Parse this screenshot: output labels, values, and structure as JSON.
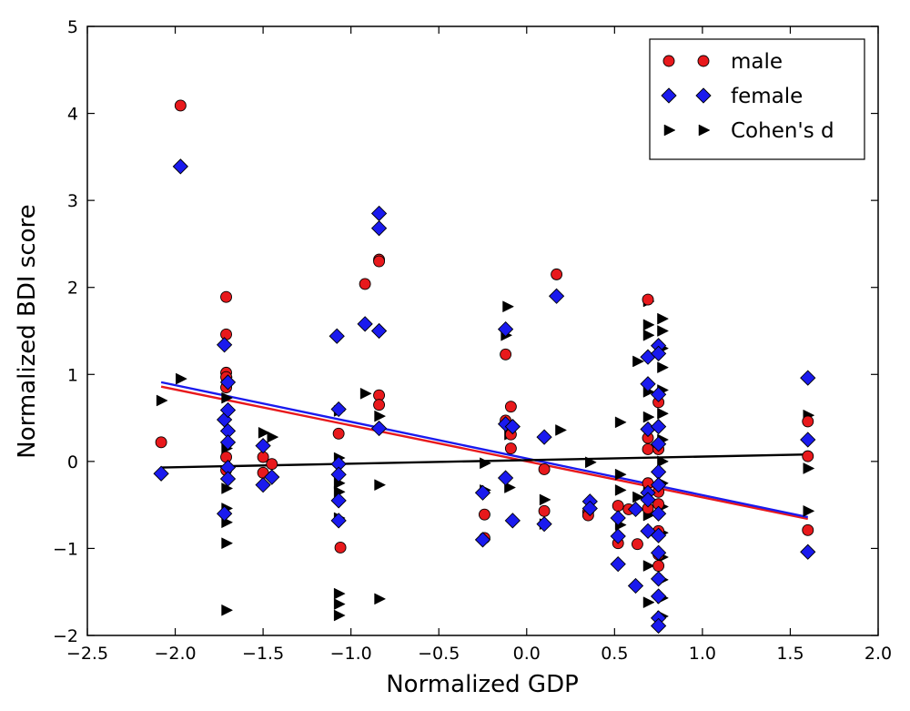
{
  "chart_data": {
    "type": "scatter",
    "xlabel": "Normalized GDP",
    "ylabel": "Normalized BDI score",
    "xlim": [
      -2.5,
      2.0
    ],
    "ylim": [
      -2,
      5
    ],
    "xticks": [
      -2.5,
      -2.0,
      -1.5,
      -1.0,
      -0.5,
      0.0,
      0.5,
      1.0,
      1.5,
      2.0
    ],
    "xtick_labels": [
      "−2.5",
      "−2.0",
      "−1.5",
      "−1.0",
      "−0.5",
      "0.0",
      "0.5",
      "1.0",
      "1.5",
      "2.0"
    ],
    "yticks": [
      -2,
      -1,
      0,
      1,
      2,
      3,
      4,
      5
    ],
    "ytick_labels": [
      "−2",
      "−1",
      "0",
      "1",
      "2",
      "3",
      "4",
      "5"
    ],
    "grid": false,
    "legend_position": "top-right",
    "series": [
      {
        "name": "male",
        "marker": "circle",
        "color": "#e8191c",
        "points": [
          [
            -2.08,
            0.22
          ],
          [
            -1.97,
            4.09
          ],
          [
            -1.71,
            1.89
          ],
          [
            -1.71,
            1.46
          ],
          [
            -1.71,
            1.02
          ],
          [
            -1.71,
            0.97
          ],
          [
            -1.71,
            0.85
          ],
          [
            -1.71,
            0.05
          ],
          [
            -1.71,
            -0.1
          ],
          [
            -1.5,
            0.05
          ],
          [
            -1.5,
            -0.13
          ],
          [
            -1.45,
            -0.03
          ],
          [
            -1.07,
            0.32
          ],
          [
            -1.06,
            -0.99
          ],
          [
            -0.92,
            2.04
          ],
          [
            -0.84,
            2.32
          ],
          [
            -0.84,
            2.3
          ],
          [
            -0.84,
            0.76
          ],
          [
            -0.84,
            0.65
          ],
          [
            -0.24,
            -0.61
          ],
          [
            -0.24,
            -0.88
          ],
          [
            -0.12,
            1.23
          ],
          [
            -0.12,
            0.47
          ],
          [
            -0.09,
            0.63
          ],
          [
            -0.09,
            0.31
          ],
          [
            -0.09,
            0.15
          ],
          [
            0.1,
            -0.09
          ],
          [
            0.1,
            -0.57
          ],
          [
            0.17,
            2.15
          ],
          [
            0.35,
            -0.58
          ],
          [
            0.35,
            -0.62
          ],
          [
            0.52,
            -0.51
          ],
          [
            0.52,
            -0.94
          ],
          [
            0.58,
            -0.55
          ],
          [
            0.63,
            -0.95
          ],
          [
            0.69,
            1.86
          ],
          [
            0.69,
            0.27
          ],
          [
            0.69,
            0.14
          ],
          [
            0.69,
            -0.25
          ],
          [
            0.69,
            -0.54
          ],
          [
            0.75,
            0.68
          ],
          [
            0.75,
            0.14
          ],
          [
            0.75,
            -0.35
          ],
          [
            0.75,
            -0.49
          ],
          [
            0.75,
            -0.8
          ],
          [
            0.75,
            -1.07
          ],
          [
            0.75,
            -1.2
          ],
          [
            1.6,
            0.46
          ],
          [
            1.6,
            0.06
          ],
          [
            1.6,
            -0.79
          ]
        ]
      },
      {
        "name": "female",
        "marker": "diamond",
        "color": "#1a1aee",
        "points": [
          [
            -2.08,
            -0.14
          ],
          [
            -1.97,
            3.39
          ],
          [
            -1.72,
            1.34
          ],
          [
            -1.72,
            0.48
          ],
          [
            -1.72,
            -0.6
          ],
          [
            -1.7,
            0.91
          ],
          [
            -1.7,
            0.59
          ],
          [
            -1.7,
            0.35
          ],
          [
            -1.7,
            0.22
          ],
          [
            -1.7,
            -0.07
          ],
          [
            -1.7,
            -0.2
          ],
          [
            -1.5,
            0.18
          ],
          [
            -1.5,
            -0.27
          ],
          [
            -1.45,
            -0.18
          ],
          [
            -1.08,
            1.44
          ],
          [
            -1.07,
            0.6
          ],
          [
            -1.07,
            -0.03
          ],
          [
            -1.07,
            -0.15
          ],
          [
            -1.07,
            -0.45
          ],
          [
            -1.07,
            -0.68
          ],
          [
            -0.92,
            1.58
          ],
          [
            -0.84,
            2.85
          ],
          [
            -0.84,
            2.68
          ],
          [
            -0.84,
            1.5
          ],
          [
            -0.84,
            0.38
          ],
          [
            -0.25,
            -0.36
          ],
          [
            -0.25,
            -0.9
          ],
          [
            -0.12,
            1.52
          ],
          [
            -0.12,
            0.43
          ],
          [
            -0.12,
            -0.19
          ],
          [
            -0.08,
            0.4
          ],
          [
            -0.08,
            -0.68
          ],
          [
            0.1,
            0.28
          ],
          [
            0.1,
            -0.72
          ],
          [
            0.17,
            1.9
          ],
          [
            0.36,
            -0.46
          ],
          [
            0.36,
            -0.54
          ],
          [
            0.52,
            -0.65
          ],
          [
            0.52,
            -0.86
          ],
          [
            0.52,
            -1.18
          ],
          [
            0.62,
            -0.55
          ],
          [
            0.62,
            -1.43
          ],
          [
            0.69,
            1.2
          ],
          [
            0.69,
            0.89
          ],
          [
            0.69,
            0.37
          ],
          [
            0.69,
            -0.36
          ],
          [
            0.69,
            -0.44
          ],
          [
            0.69,
            -0.8
          ],
          [
            0.75,
            1.33
          ],
          [
            0.75,
            1.24
          ],
          [
            0.75,
            0.77
          ],
          [
            0.75,
            0.4
          ],
          [
            0.75,
            0.2
          ],
          [
            0.75,
            -0.12
          ],
          [
            0.75,
            -0.27
          ],
          [
            0.75,
            -0.6
          ],
          [
            0.75,
            -0.85
          ],
          [
            0.75,
            -1.05
          ],
          [
            0.75,
            -1.35
          ],
          [
            0.75,
            -1.55
          ],
          [
            0.75,
            -1.8
          ],
          [
            0.75,
            -1.89
          ],
          [
            1.6,
            0.96
          ],
          [
            1.6,
            0.25
          ],
          [
            1.6,
            -1.04
          ]
        ]
      },
      {
        "name": "Cohen's d",
        "marker": "triangle-right",
        "color": "#000000",
        "points": [
          [
            -2.08,
            0.7
          ],
          [
            -1.97,
            0.95
          ],
          [
            -1.71,
            0.97
          ],
          [
            -1.71,
            0.92
          ],
          [
            -1.71,
            0.73
          ],
          [
            -1.71,
            0.15
          ],
          [
            -1.71,
            -0.31
          ],
          [
            -1.71,
            -0.54
          ],
          [
            -1.71,
            -0.7
          ],
          [
            -1.71,
            -0.94
          ],
          [
            -1.71,
            -1.71
          ],
          [
            -1.5,
            0.33
          ],
          [
            -1.45,
            0.28
          ],
          [
            -1.07,
            0.58
          ],
          [
            -1.07,
            0.04
          ],
          [
            -1.07,
            -0.25
          ],
          [
            -1.07,
            -0.35
          ],
          [
            -1.07,
            -0.65
          ],
          [
            -1.07,
            -1.52
          ],
          [
            -1.07,
            -1.64
          ],
          [
            -1.07,
            -1.77
          ],
          [
            -0.92,
            0.78
          ],
          [
            -0.84,
            0.52
          ],
          [
            -0.84,
            -0.27
          ],
          [
            -0.84,
            -1.58
          ],
          [
            -0.24,
            -0.33
          ],
          [
            -0.24,
            -0.02
          ],
          [
            -0.12,
            1.45
          ],
          [
            -0.11,
            1.78
          ],
          [
            -0.1,
            0.31
          ],
          [
            -0.1,
            -0.3
          ],
          [
            0.1,
            -0.44
          ],
          [
            0.1,
            -0.72
          ],
          [
            0.19,
            0.36
          ],
          [
            0.36,
            -0.01
          ],
          [
            0.53,
            0.45
          ],
          [
            0.53,
            -0.15
          ],
          [
            0.53,
            -0.33
          ],
          [
            0.53,
            -0.73
          ],
          [
            0.63,
            1.15
          ],
          [
            0.63,
            -0.41
          ],
          [
            0.69,
            1.84
          ],
          [
            0.69,
            1.57
          ],
          [
            0.69,
            1.45
          ],
          [
            0.69,
            0.8
          ],
          [
            0.69,
            0.51
          ],
          [
            0.69,
            -0.36
          ],
          [
            0.69,
            -0.62
          ],
          [
            0.69,
            -1.2
          ],
          [
            0.69,
            -1.62
          ],
          [
            0.77,
            1.64
          ],
          [
            0.77,
            1.5
          ],
          [
            0.77,
            1.3
          ],
          [
            0.77,
            1.08
          ],
          [
            0.77,
            0.82
          ],
          [
            0.77,
            0.55
          ],
          [
            0.77,
            0.25
          ],
          [
            0.77,
            0.0
          ],
          [
            0.77,
            -0.25
          ],
          [
            0.77,
            -0.52
          ],
          [
            0.77,
            -0.82
          ],
          [
            0.77,
            -1.1
          ],
          [
            0.77,
            -1.36
          ],
          [
            0.77,
            -1.57
          ],
          [
            0.77,
            -1.78
          ],
          [
            1.6,
            0.53
          ],
          [
            1.6,
            -0.08
          ],
          [
            1.6,
            -0.57
          ]
        ]
      }
    ],
    "trend_lines": [
      {
        "name": "male-fit",
        "color": "#e8191c",
        "from": [
          -2.08,
          0.86
        ],
        "to": [
          1.6,
          -0.66
        ]
      },
      {
        "name": "female-fit",
        "color": "#1a1aee",
        "from": [
          -2.08,
          0.91
        ],
        "to": [
          1.6,
          -0.64
        ]
      },
      {
        "name": "cohens-d-fit",
        "color": "#000000",
        "from": [
          -2.08,
          -0.07
        ],
        "to": [
          1.6,
          0.08
        ]
      }
    ]
  }
}
